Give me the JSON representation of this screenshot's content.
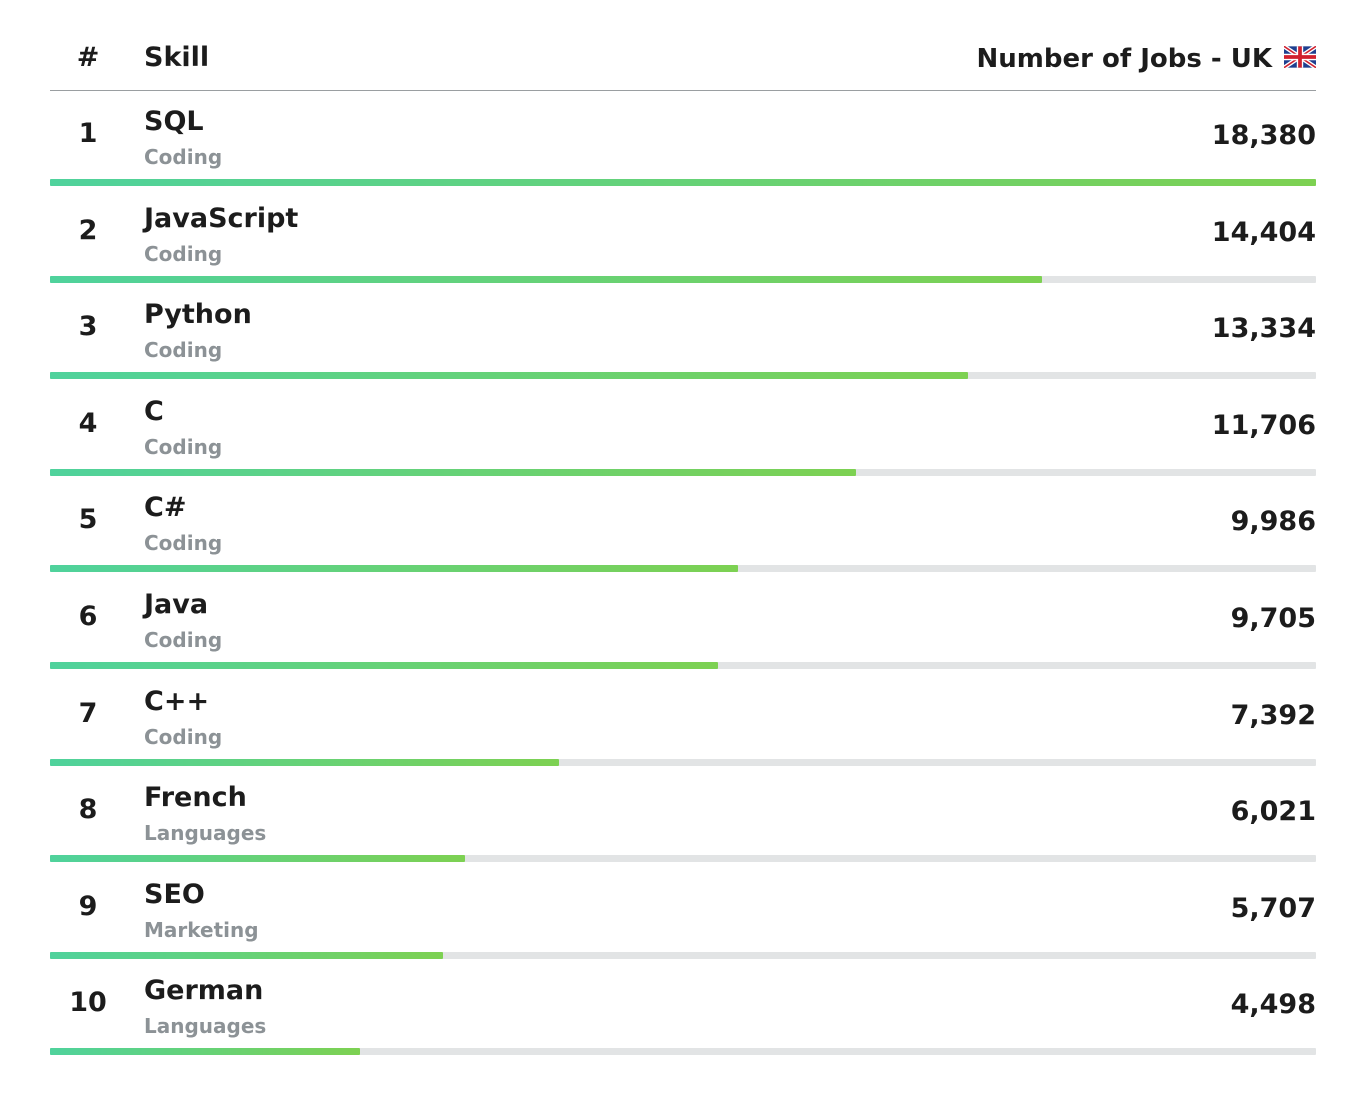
{
  "header": {
    "rank_label": "#",
    "skill_label": "Skill",
    "jobs_label": "Number of Jobs - UK",
    "flag_icon": "uk-flag-icon"
  },
  "colors": {
    "bar_start": "#4fd29c",
    "bar_end": "#7dd152",
    "track": "#e2e4e5",
    "category_text": "#8c9296"
  },
  "chart_data": {
    "type": "bar",
    "orientation": "horizontal",
    "title": "",
    "xlabel": "Number of Jobs - UK",
    "ylabel": "Skill",
    "xlim": [
      0,
      18380
    ],
    "categories": [
      "SQL",
      "JavaScript",
      "Python",
      "C",
      "C#",
      "Java",
      "C++",
      "French",
      "SEO",
      "German"
    ],
    "values": [
      18380,
      14404,
      13334,
      11706,
      9986,
      9705,
      7392,
      6021,
      5707,
      4498
    ],
    "rows": [
      {
        "rank": "1",
        "skill": "SQL",
        "category": "Coding",
        "jobs": 18380,
        "jobs_label": "18,380"
      },
      {
        "rank": "2",
        "skill": "JavaScript",
        "category": "Coding",
        "jobs": 14404,
        "jobs_label": "14,404"
      },
      {
        "rank": "3",
        "skill": "Python",
        "category": "Coding",
        "jobs": 13334,
        "jobs_label": "13,334"
      },
      {
        "rank": "4",
        "skill": "C",
        "category": "Coding",
        "jobs": 11706,
        "jobs_label": "11,706"
      },
      {
        "rank": "5",
        "skill": "C#",
        "category": "Coding",
        "jobs": 9986,
        "jobs_label": "9,986"
      },
      {
        "rank": "6",
        "skill": "Java",
        "category": "Coding",
        "jobs": 9705,
        "jobs_label": "9,705"
      },
      {
        "rank": "7",
        "skill": "C++",
        "category": "Coding",
        "jobs": 7392,
        "jobs_label": "7,392"
      },
      {
        "rank": "8",
        "skill": "French",
        "category": "Languages",
        "jobs": 6021,
        "jobs_label": "6,021"
      },
      {
        "rank": "9",
        "skill": "SEO",
        "category": "Marketing",
        "jobs": 5707,
        "jobs_label": "5,707"
      },
      {
        "rank": "10",
        "skill": "German",
        "category": "Languages",
        "jobs": 4498,
        "jobs_label": "4,498"
      }
    ]
  }
}
